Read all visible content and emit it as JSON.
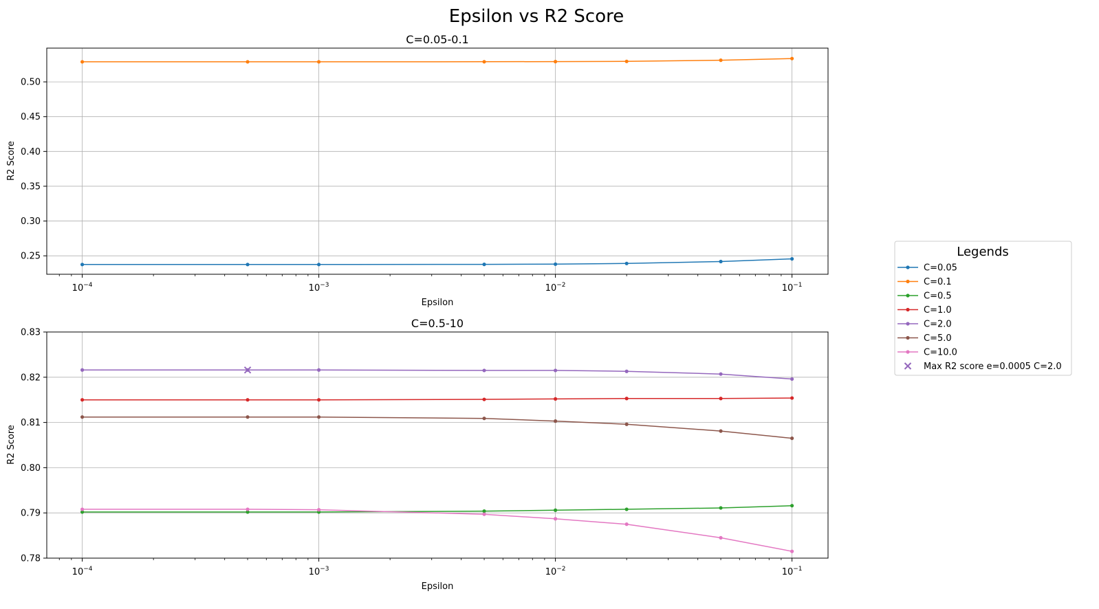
{
  "figure_title": "Epsilon vs R2 Score",
  "legend_title": "Legends",
  "chart_data": [
    {
      "type": "line",
      "title": "C=0.05-0.1",
      "xlabel": "Epsilon",
      "ylabel": "R2 Score",
      "xscale": "log",
      "xlim": [
        7.08e-05,
        0.142
      ],
      "ylim": [
        0.2235,
        0.5485
      ],
      "grid": true,
      "x": [
        0.0001,
        0.0005,
        0.001,
        0.005,
        0.01,
        0.02,
        0.05,
        0.1
      ],
      "x_ticks": [
        {
          "value": 0.0001,
          "base": "10",
          "exp": "−4"
        },
        {
          "value": 0.001,
          "base": "10",
          "exp": "−3"
        },
        {
          "value": 0.01,
          "base": "10",
          "exp": "−2"
        },
        {
          "value": 0.1,
          "base": "10",
          "exp": "−1"
        }
      ],
      "y_ticks": [
        "0.25",
        "0.30",
        "0.35",
        "0.40",
        "0.45",
        "0.50"
      ],
      "series": [
        {
          "name": "C=0.05",
          "color": "#1f77b4",
          "values": [
            0.2375,
            0.2375,
            0.2375,
            0.2377,
            0.238,
            0.239,
            0.2418,
            0.2456
          ]
        },
        {
          "name": "C=0.1",
          "color": "#ff7f0e",
          "values": [
            0.5288,
            0.5288,
            0.5288,
            0.5289,
            0.5291,
            0.5294,
            0.5311,
            0.5335
          ]
        }
      ]
    },
    {
      "type": "line",
      "title": "C=0.5-10",
      "xlabel": "Epsilon",
      "ylabel": "R2 Score",
      "xscale": "log",
      "xlim": [
        7.08e-05,
        0.142
      ],
      "ylim": [
        0.78,
        0.83
      ],
      "grid": true,
      "x": [
        0.0001,
        0.0005,
        0.001,
        0.005,
        0.01,
        0.02,
        0.05,
        0.1
      ],
      "x_ticks": [
        {
          "value": 0.0001,
          "base": "10",
          "exp": "−4"
        },
        {
          "value": 0.001,
          "base": "10",
          "exp": "−3"
        },
        {
          "value": 0.01,
          "base": "10",
          "exp": "−2"
        },
        {
          "value": 0.1,
          "base": "10",
          "exp": "−1"
        }
      ],
      "y_ticks": [
        "0.78",
        "0.79",
        "0.80",
        "0.81",
        "0.82",
        "0.83"
      ],
      "series": [
        {
          "name": "C=0.5",
          "color": "#2ca02c",
          "values": [
            0.7902,
            0.7902,
            0.7902,
            0.7904,
            0.7906,
            0.7908,
            0.7911,
            0.7916
          ]
        },
        {
          "name": "C=1.0",
          "color": "#d62728",
          "values": [
            0.815,
            0.815,
            0.815,
            0.8151,
            0.8152,
            0.8153,
            0.8153,
            0.8154
          ]
        },
        {
          "name": "C=2.0",
          "color": "#9467bd",
          "values": [
            0.8216,
            0.8216,
            0.8216,
            0.8215,
            0.8215,
            0.8213,
            0.8207,
            0.8196
          ]
        },
        {
          "name": "C=5.0",
          "color": "#8c564b",
          "values": [
            0.8112,
            0.8112,
            0.8112,
            0.8109,
            0.8103,
            0.8096,
            0.8081,
            0.8065
          ]
        },
        {
          "name": "C=10.0",
          "color": "#e377c2",
          "values": [
            0.7908,
            0.7908,
            0.7907,
            0.7897,
            0.7887,
            0.7875,
            0.7845,
            0.7815
          ]
        }
      ],
      "annotations": [
        {
          "label": "Max R2 score e=0.0005 C=2.0",
          "x": 0.0005,
          "y": 0.8216,
          "marker": "x",
          "color": "#9467bd"
        }
      ]
    }
  ]
}
